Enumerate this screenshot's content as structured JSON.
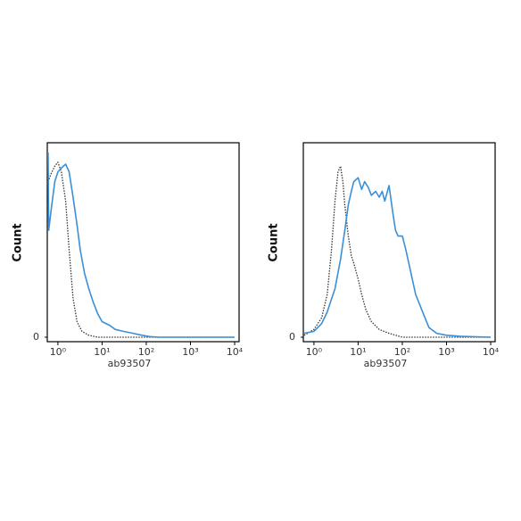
{
  "chart_data": [
    {
      "type": "line",
      "xlabel": "ab93507",
      "ylabel": "Count",
      "xscale": "log",
      "xlim": [
        0.575,
        12600
      ],
      "ylim": [
        -2.3,
        100
      ],
      "xticks": [
        {
          "value": 1,
          "label": "10⁰"
        },
        {
          "value": 10,
          "label": "10¹"
        },
        {
          "value": 100,
          "label": "10²"
        },
        {
          "value": 1000,
          "label": "10³"
        },
        {
          "value": 10000,
          "label": "10⁴"
        }
      ],
      "yticks": [
        0
      ],
      "series": [
        {
          "color": "#3a8fd6",
          "style": "solid",
          "x": [
            0.6,
            0.62,
            0.7,
            0.85,
            1.0,
            1.2,
            1.5,
            1.8,
            2.2,
            2.7,
            3.2,
            4,
            5,
            6.3,
            8,
            10,
            15,
            20,
            30,
            50,
            80,
            120,
            200,
            1000,
            10000
          ],
          "values": [
            95,
            55,
            65,
            80,
            85,
            87,
            89,
            85,
            72,
            58,
            45,
            33,
            25,
            18,
            12,
            8,
            6,
            4,
            3,
            2,
            1,
            0.3,
            0,
            0,
            0
          ]
        },
        {
          "color": "#333333",
          "style": "dotted",
          "x": [
            0.6,
            0.7,
            0.85,
            1.0,
            1.2,
            1.5,
            1.8,
            2.2,
            2.7,
            3.5,
            5,
            8,
            10000
          ],
          "values": [
            80,
            84,
            88,
            90,
            85,
            70,
            45,
            20,
            8,
            3,
            1,
            0,
            0
          ]
        }
      ]
    },
    {
      "type": "line",
      "xlabel": "ab93507",
      "ylabel": "Count",
      "xscale": "log",
      "xlim": [
        0.575,
        12600
      ],
      "ylim": [
        -2.3,
        100
      ],
      "xticks": [
        {
          "value": 1,
          "label": "10⁰"
        },
        {
          "value": 10,
          "label": "10¹"
        },
        {
          "value": 100,
          "label": "10²"
        },
        {
          "value": 1000,
          "label": "10³"
        },
        {
          "value": 10000,
          "label": "10⁴"
        }
      ],
      "yticks": [
        0
      ],
      "series": [
        {
          "color": "#3a8fd6",
          "style": "solid",
          "x": [
            0.6,
            1,
            1.5,
            2,
            3,
            4,
            5,
            6,
            7,
            8,
            10,
            12,
            14,
            17,
            20,
            25,
            30,
            35,
            40,
            50,
            60,
            70,
            80,
            100,
            120,
            150,
            200,
            300,
            400,
            600,
            1000,
            2000,
            10000
          ],
          "values": [
            2,
            3,
            7,
            13,
            25,
            40,
            55,
            68,
            75,
            80,
            82,
            76,
            80,
            77,
            73,
            75,
            72,
            75,
            70,
            78,
            65,
            55,
            52,
            52,
            45,
            35,
            22,
            12,
            5,
            2,
            1,
            0.5,
            0
          ]
        },
        {
          "color": "#333333",
          "style": "dotted",
          "x": [
            0.6,
            1,
            1.5,
            2,
            2.5,
            3,
            3.5,
            4,
            4.5,
            5,
            6,
            7,
            8,
            10,
            12,
            15,
            20,
            30,
            50,
            100,
            10000
          ],
          "values": [
            1,
            4,
            10,
            22,
            45,
            70,
            85,
            88,
            80,
            68,
            52,
            42,
            38,
            30,
            22,
            14,
            8,
            4,
            2,
            0,
            0
          ]
        }
      ]
    }
  ]
}
